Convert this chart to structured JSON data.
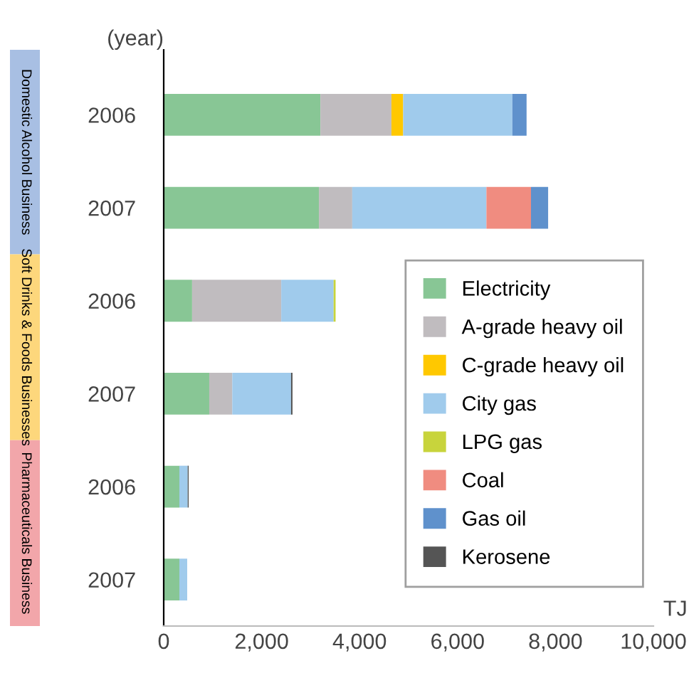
{
  "chart_data": {
    "type": "bar",
    "orientation": "horizontal",
    "stacked": true,
    "ylabel": "(year)",
    "xlabel": "TJ",
    "categories": [
      "2006",
      "2007",
      "2006",
      "2007",
      "2006",
      "2007"
    ],
    "annotations": [
      "Domestic Alcohol Business",
      "Soft Drinks & Foods Businesses",
      "Pharmaceuticals Business"
    ],
    "series": [
      {
        "name": "Electricity",
        "color": "#88c695",
        "values": [
          3200,
          3170,
          580,
          930,
          320,
          320
        ]
      },
      {
        "name": "A-grade heavy oil",
        "color": "#c0bcbf",
        "values": [
          1450,
          680,
          1820,
          470,
          null,
          null
        ]
      },
      {
        "name": "C-grade heavy oil",
        "color": "#ffc800",
        "values": [
          240,
          null,
          null,
          null,
          null,
          null
        ]
      },
      {
        "name": "City gas",
        "color": "#a0cbec",
        "values": [
          2230,
          2740,
          1070,
          1200,
          170,
          160
        ]
      },
      {
        "name": "LPG gas",
        "color": "#c8d43c",
        "values": [
          null,
          null,
          40,
          null,
          null,
          null
        ]
      },
      {
        "name": "Coal",
        "color": "#f08c80",
        "values": [
          null,
          910,
          null,
          null,
          null,
          null
        ]
      },
      {
        "name": "Gas oil",
        "color": "#5f91cc",
        "values": [
          290,
          350,
          null,
          null,
          null,
          null
        ]
      },
      {
        "name": "Kerosene",
        "color": "#555555",
        "values": [
          null,
          null,
          null,
          30,
          20,
          null
        ]
      }
    ],
    "xlim": [
      0,
      10000
    ],
    "xticks": [
      0,
      {
        "value": 2000,
        "label": "2,000"
      },
      {
        "value": 4000,
        "label": "4,000"
      },
      {
        "value": 6000,
        "label": "6,000"
      },
      {
        "value": 8000,
        "label": "8,000"
      },
      {
        "value": 10000,
        "label": "10,000"
      }
    ],
    "legend": "bottom right",
    "grid": false
  }
}
